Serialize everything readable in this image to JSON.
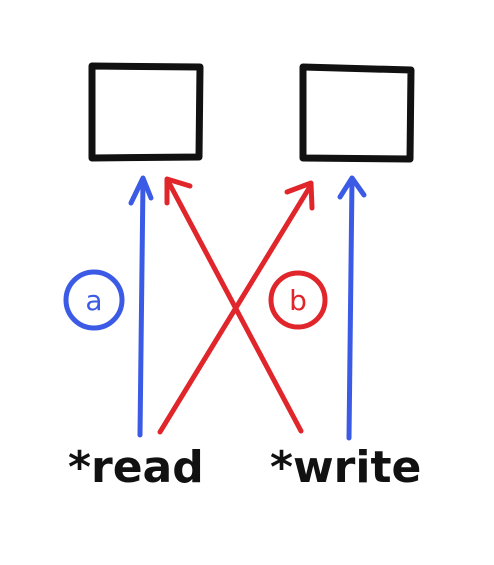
{
  "colors": {
    "blue": "#3b5be6",
    "red": "#e0262b",
    "ink": "#111111"
  },
  "labels": {
    "read": "*read",
    "write": "*write"
  },
  "markers": {
    "a": "a",
    "b": "b"
  }
}
